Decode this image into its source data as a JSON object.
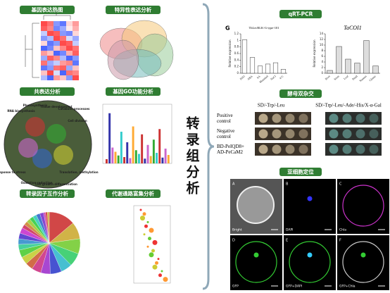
{
  "side_label": "转录组分析",
  "panels": [
    {
      "title": "基因表达热图"
    },
    {
      "title": "特异性表达分析"
    },
    {
      "title": "共表达分析"
    },
    {
      "title": "基因GO功能分析"
    },
    {
      "title": "转录因子互作分析"
    },
    {
      "title": "代谢通路富集分析"
    }
  ],
  "heatmap": [
    [
      0.9,
      0.7,
      -0.6,
      -0.8,
      0.2,
      0.5
    ],
    [
      0.8,
      0.6,
      -0.7,
      -0.5,
      0.1,
      0.4
    ],
    [
      -0.3,
      0.9,
      0.8,
      -0.6,
      -0.7,
      0.2
    ],
    [
      -0.6,
      -0.4,
      0.9,
      0.7,
      -0.2,
      -0.5
    ],
    [
      0.2,
      -0.8,
      -0.6,
      0.9,
      0.8,
      -0.3
    ],
    [
      -0.9,
      -0.7,
      0.3,
      0.6,
      0.9,
      0.7
    ],
    [
      0.5,
      0.3,
      -0.9,
      -0.7,
      0.4,
      0.8
    ],
    [
      -0.5,
      0.8,
      0.6,
      -0.4,
      -0.9,
      -0.6
    ],
    [
      0.7,
      -0.5,
      -0.3,
      0.5,
      0.6,
      -0.8
    ],
    [
      -0.8,
      -0.6,
      0.7,
      0.8,
      -0.5,
      0.3
    ],
    [
      0.3,
      0.9,
      -0.2,
      -0.9,
      0.7,
      0.6
    ],
    [
      -0.4,
      -0.9,
      0.5,
      0.3,
      -0.6,
      0.9
    ]
  ],
  "network_labels": [
    "RNA biosynthesis",
    "Photosynthesis",
    "Tissue development",
    "Catabolic processes",
    "Cell division",
    "Response to stress",
    "Oxidation reduction",
    "Cell growth differentiation",
    "Translation, methylation"
  ],
  "go_values": [
    8,
    95,
    30,
    22,
    15,
    60,
    12,
    40,
    10,
    70,
    25,
    18,
    55,
    9,
    35,
    14,
    45,
    20,
    65,
    11,
    28,
    16
  ],
  "pie_values": [
    14,
    9,
    8,
    7,
    6,
    6,
    5,
    5,
    4,
    4,
    4,
    3,
    3,
    3,
    3,
    2,
    2,
    2,
    2,
    2,
    2,
    2,
    1,
    1,
    1
  ],
  "kegg_points": [
    0.02,
    0.03,
    0.025,
    0.04,
    0.035,
    0.05,
    0.03,
    0.045,
    0.06,
    0.04,
    0.055,
    0.05,
    0.07,
    0.065,
    0.06,
    0.08,
    0.075,
    0.09
  ],
  "qrt_pcr": {
    "title": "qRT-PCR",
    "charts": [
      {
        "label": "G",
        "title": "ThLecRLK-G-type-101",
        "y_label": "Relative expression",
        "categories": [
          "H2O",
          "ABA",
          "SA",
          "Mannitol",
          "NaCl",
          "4°C"
        ],
        "values": [
          1.02,
          0.48,
          0.22,
          0.28,
          0.32,
          0.12
        ],
        "ylim": [
          0,
          1.2
        ],
        "yticks": [
          0,
          0.2,
          0.4,
          0.6,
          0.8,
          1,
          1.2
        ]
      },
      {
        "title": "TaCOI1",
        "y_label": "Relative expression",
        "categories": [
          "Root",
          "Stem",
          "Leaf",
          "Pistil",
          "Stamen",
          "Glume"
        ],
        "values": [
          1,
          9.5,
          5,
          3.6,
          11.6,
          2.6
        ],
        "ylim": [
          0,
          14
        ],
        "yticks": [
          0,
          2,
          4,
          6,
          8,
          10,
          12,
          14
        ]
      }
    ]
  },
  "yeast": {
    "title": "酵母双杂交",
    "columns": [
      "SD/-Trp/-Leu",
      "SD/-Trp/-Leu/-Ade/-His/X-α-Gal"
    ],
    "rows": [
      "Positive control",
      "Negative control",
      "BD-PeIQD8+ AD-PeCaM2"
    ]
  },
  "subcellular": {
    "title": "亚细胞定位",
    "tiles": [
      {
        "letter": "A",
        "label": "Bright"
      },
      {
        "letter": "B",
        "label": "DAPI"
      },
      {
        "letter": "C",
        "label": "Chla"
      },
      {
        "letter": "D",
        "label": "GFP"
      },
      {
        "letter": "E",
        "label": "GFP+DAPI"
      },
      {
        "letter": "F",
        "label": "GFP+Chla"
      }
    ]
  }
}
